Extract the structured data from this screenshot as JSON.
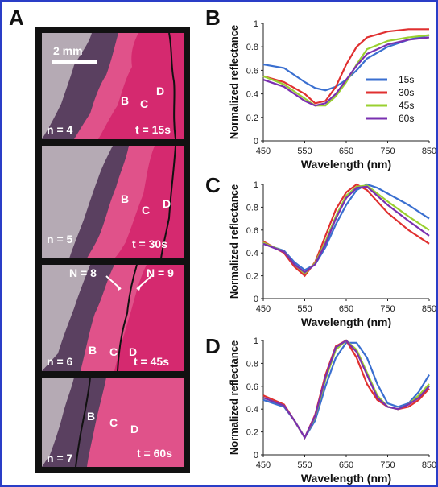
{
  "panels": {
    "A": "A",
    "B": "B",
    "C": "C",
    "D": "D"
  },
  "micrograph": {
    "scale_bar_label": "2 mm",
    "frames": [
      {
        "n_label": "n = 4",
        "time_label": "t = 15s",
        "letters": [
          "B",
          "C",
          "D"
        ]
      },
      {
        "n_label": "n = 5",
        "time_label": "t = 30s",
        "letters": [
          "B",
          "C",
          "D"
        ]
      },
      {
        "n_label": "n = 6",
        "time_label": "t = 45s",
        "letters": [
          "B",
          "C",
          "D"
        ],
        "arrows": [
          "N = 8",
          "N = 9"
        ]
      },
      {
        "n_label": "n = 7",
        "time_label": "t = 60s",
        "letters": [
          "B",
          "C",
          "D"
        ]
      }
    ],
    "colors": {
      "grey": "#b5aab4",
      "dark": "#5a4060",
      "magenta": "#d5296f",
      "pink": "#e63d78",
      "border": "#111111"
    }
  },
  "legend_colors": {
    "15s": "#3a6fd0",
    "30s": "#e03030",
    "45s": "#9ad030",
    "60s": "#7a30b0"
  },
  "chart_data": [
    {
      "type": "line",
      "panel": "B",
      "xlabel": "Wavelength (nm)",
      "ylabel": "Normalized reflectance",
      "xlim": [
        450,
        850
      ],
      "ylim": [
        0,
        1
      ],
      "xticks": [
        450,
        550,
        650,
        750,
        850
      ],
      "yticks": [
        0,
        0.2,
        0.4,
        0.6,
        0.8,
        1
      ],
      "ytick_labels": [
        "0",
        "0.2",
        "0.4",
        "0.6",
        "0.8",
        "1"
      ],
      "legend": "top-right",
      "x": [
        450,
        500,
        550,
        575,
        600,
        625,
        650,
        675,
        700,
        750,
        800,
        850
      ],
      "series": [
        {
          "name": "15s",
          "values": [
            0.65,
            0.62,
            0.5,
            0.45,
            0.43,
            0.46,
            0.52,
            0.6,
            0.7,
            0.8,
            0.86,
            0.9
          ]
        },
        {
          "name": "30s",
          "values": [
            0.55,
            0.5,
            0.4,
            0.32,
            0.34,
            0.46,
            0.65,
            0.8,
            0.88,
            0.93,
            0.95,
            0.95
          ]
        },
        {
          "name": "45s",
          "values": [
            0.55,
            0.48,
            0.36,
            0.3,
            0.3,
            0.38,
            0.5,
            0.65,
            0.78,
            0.85,
            0.88,
            0.9
          ]
        },
        {
          "name": "60s",
          "values": [
            0.52,
            0.46,
            0.34,
            0.3,
            0.32,
            0.4,
            0.52,
            0.64,
            0.74,
            0.82,
            0.86,
            0.88
          ]
        }
      ]
    },
    {
      "type": "line",
      "panel": "C",
      "xlabel": "Wavelength (nm)",
      "ylabel": "Normalized reflectance",
      "xlim": [
        450,
        850
      ],
      "ylim": [
        0,
        1
      ],
      "xticks": [
        450,
        550,
        650,
        750,
        850
      ],
      "yticks": [
        0,
        0.2,
        0.4,
        0.6,
        0.8,
        1
      ],
      "ytick_labels": [
        "0",
        "0.2",
        "0.4",
        "0.6",
        "0.8",
        "1"
      ],
      "x": [
        450,
        500,
        525,
        550,
        575,
        600,
        625,
        650,
        675,
        700,
        725,
        750,
        800,
        850
      ],
      "series": [
        {
          "name": "15s",
          "values": [
            0.48,
            0.42,
            0.32,
            0.25,
            0.3,
            0.45,
            0.65,
            0.82,
            0.95,
            1.0,
            0.97,
            0.92,
            0.82,
            0.7
          ]
        },
        {
          "name": "30s",
          "values": [
            0.5,
            0.4,
            0.28,
            0.2,
            0.32,
            0.55,
            0.78,
            0.93,
            1.0,
            0.95,
            0.85,
            0.75,
            0.6,
            0.48
          ]
        },
        {
          "name": "45s",
          "values": [
            0.49,
            0.41,
            0.3,
            0.22,
            0.31,
            0.5,
            0.72,
            0.9,
            0.98,
            0.99,
            0.92,
            0.85,
            0.72,
            0.6
          ]
        },
        {
          "name": "60s",
          "values": [
            0.48,
            0.41,
            0.3,
            0.23,
            0.3,
            0.48,
            0.7,
            0.88,
            0.97,
            0.98,
            0.9,
            0.82,
            0.68,
            0.55
          ]
        }
      ]
    },
    {
      "type": "line",
      "panel": "D",
      "xlabel": "Wavelength (nm)",
      "ylabel": "Normalized reflectance",
      "xlim": [
        450,
        850
      ],
      "ylim": [
        0,
        1
      ],
      "xticks": [
        450,
        550,
        650,
        750,
        850
      ],
      "yticks": [
        0,
        0.2,
        0.4,
        0.6,
        0.8,
        1
      ],
      "ytick_labels": [
        "0",
        "0.2",
        "0.4",
        "0.6",
        "0.8",
        "1"
      ],
      "x": [
        450,
        500,
        525,
        550,
        575,
        600,
        625,
        650,
        675,
        700,
        725,
        750,
        775,
        800,
        825,
        850
      ],
      "series": [
        {
          "name": "15s",
          "values": [
            0.48,
            0.42,
            0.3,
            0.15,
            0.3,
            0.6,
            0.85,
            0.98,
            0.98,
            0.85,
            0.62,
            0.45,
            0.42,
            0.45,
            0.55,
            0.7
          ]
        },
        {
          "name": "30s",
          "values": [
            0.52,
            0.44,
            0.3,
            0.15,
            0.35,
            0.7,
            0.95,
            1.0,
            0.85,
            0.62,
            0.48,
            0.42,
            0.4,
            0.42,
            0.48,
            0.58
          ]
        },
        {
          "name": "45s",
          "values": [
            0.5,
            0.43,
            0.3,
            0.15,
            0.33,
            0.66,
            0.92,
            1.0,
            0.92,
            0.72,
            0.52,
            0.42,
            0.4,
            0.44,
            0.52,
            0.62
          ]
        },
        {
          "name": "60s",
          "values": [
            0.5,
            0.43,
            0.3,
            0.15,
            0.34,
            0.68,
            0.94,
            1.0,
            0.9,
            0.7,
            0.5,
            0.42,
            0.4,
            0.44,
            0.5,
            0.6
          ]
        }
      ]
    }
  ]
}
